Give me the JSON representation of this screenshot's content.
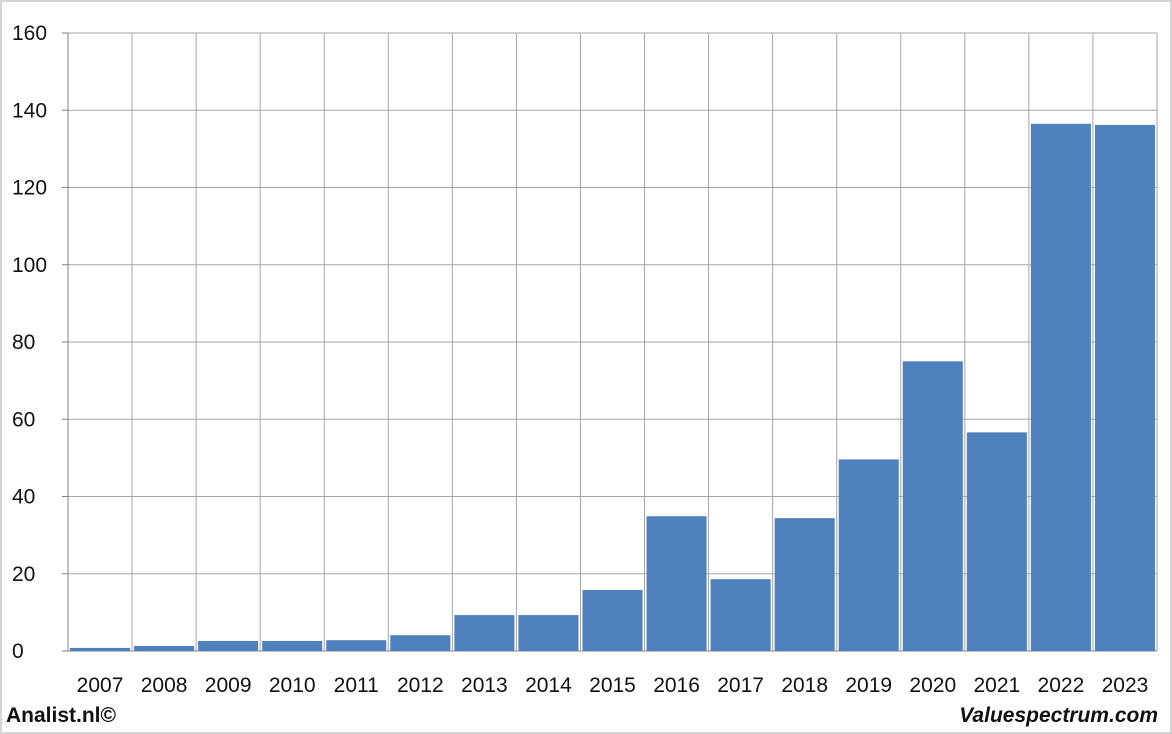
{
  "chart_data": {
    "type": "bar",
    "categories": [
      "2007",
      "2008",
      "2009",
      "2010",
      "2011",
      "2012",
      "2013",
      "2014",
      "2015",
      "2016",
      "2017",
      "2018",
      "2019",
      "2020",
      "2021",
      "2022",
      "2023"
    ],
    "values": [
      0.8,
      1.3,
      2.6,
      2.6,
      2.8,
      4.1,
      9.3,
      9.3,
      15.8,
      34.9,
      18.6,
      34.4,
      49.6,
      75.0,
      56.6,
      136.5,
      136.2
    ],
    "ylim": [
      0,
      160
    ],
    "yticks": [
      0,
      20,
      40,
      60,
      80,
      100,
      120,
      140,
      160
    ],
    "grid": true,
    "bar_color": "#4f81bd",
    "grid_color": "#a6a6a6"
  },
  "footer": {
    "left": "Analist.nl©",
    "right": "Valuespectrum.com"
  }
}
